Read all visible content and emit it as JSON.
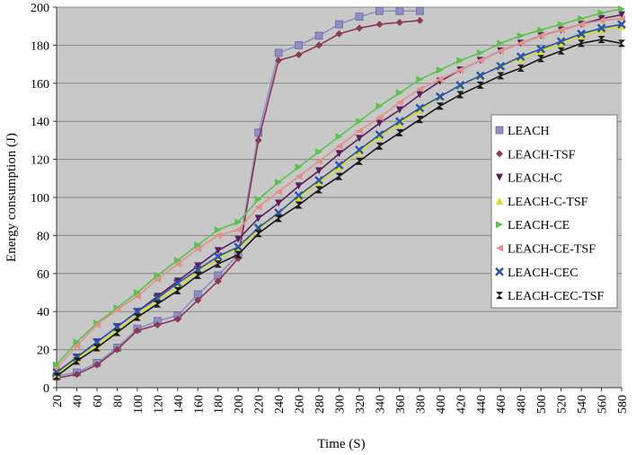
{
  "chart_data": {
    "type": "line",
    "title": "",
    "xlabel": "Time (S)",
    "ylabel": "Energy consumption (J)",
    "ylim": [
      0,
      200
    ],
    "yticks": [
      "0",
      "20",
      "40",
      "60",
      "80",
      "100",
      "120",
      "140",
      "160",
      "180",
      "200"
    ],
    "xticks": [
      "20",
      "40",
      "60",
      "80",
      "100",
      "120",
      "140",
      "160",
      "180",
      "200",
      "220",
      "240",
      "260",
      "280",
      "300",
      "320",
      "340",
      "360",
      "380",
      "400",
      "420",
      "440",
      "460",
      "480",
      "500",
      "520",
      "540",
      "560",
      "580"
    ],
    "grid": "horizontal",
    "legend_position": "right",
    "background": "#c8c8c8",
    "series": [
      {
        "name": "LEACH",
        "color": "#8f8fc6",
        "marker": "square",
        "x": [
          20,
          40,
          60,
          80,
          100,
          120,
          140,
          160,
          180,
          200,
          220,
          240,
          260,
          280,
          300,
          320,
          340,
          360,
          380
        ],
        "y": [
          6,
          8,
          13,
          21,
          31,
          35,
          38,
          49,
          59,
          70,
          134,
          176,
          180,
          185,
          191,
          195,
          198,
          198,
          198
        ]
      },
      {
        "name": "LEACH-TSF",
        "color": "#8a3a52",
        "marker": "diamond",
        "x": [
          20,
          40,
          60,
          80,
          100,
          120,
          140,
          160,
          180,
          200,
          220,
          240,
          260,
          280,
          300,
          320,
          340,
          360,
          380
        ],
        "y": [
          5,
          7,
          12,
          20,
          30,
          33,
          36,
          46,
          56,
          68,
          130,
          172,
          175,
          180,
          186,
          189,
          191,
          192,
          193
        ]
      },
      {
        "name": "LEACH-C",
        "color": "#5a1f5e",
        "marker": "triangle-down",
        "x": [
          20,
          40,
          60,
          80,
          100,
          120,
          140,
          160,
          180,
          200,
          220,
          240,
          260,
          280,
          300,
          320,
          340,
          360,
          380,
          400,
          420,
          440,
          460,
          480,
          500,
          520,
          540,
          560,
          580
        ],
        "y": [
          8,
          16,
          24,
          32,
          40,
          48,
          56,
          64,
          72,
          78,
          89,
          97,
          106,
          114,
          123,
          131,
          139,
          146,
          154,
          161,
          167,
          172,
          177,
          181,
          185,
          188,
          191,
          194,
          196
        ]
      },
      {
        "name": "LEACH-C-TSF",
        "color": "#dddd1a",
        "marker": "triangle-up",
        "x": [
          20,
          40,
          60,
          80,
          100,
          120,
          140,
          160,
          180,
          200,
          220,
          240,
          260,
          280,
          300,
          320,
          340,
          360,
          380,
          400,
          420,
          440,
          460,
          480,
          500,
          520,
          540,
          560,
          580
        ],
        "y": [
          7,
          15,
          22,
          30,
          38,
          46,
          53,
          61,
          68,
          73,
          83,
          92,
          100,
          108,
          116,
          124,
          132,
          139,
          146,
          153,
          159,
          164,
          169,
          173,
          177,
          181,
          185,
          188,
          190
        ]
      },
      {
        "name": "LEACH-CE",
        "color": "#5cc14f",
        "marker": "triangle-right",
        "x": [
          20,
          40,
          60,
          80,
          100,
          120,
          140,
          160,
          180,
          200,
          220,
          240,
          260,
          280,
          300,
          320,
          340,
          360,
          380,
          400,
          420,
          440,
          460,
          480,
          500,
          520,
          540,
          560,
          580
        ],
        "y": [
          12,
          24,
          34,
          42,
          50,
          59,
          67,
          75,
          83,
          87,
          99,
          108,
          116,
          124,
          132,
          140,
          148,
          155,
          162,
          167,
          172,
          176,
          181,
          185,
          188,
          191,
          194,
          197,
          199
        ]
      },
      {
        "name": "LEACH-CE-TSF",
        "color": "#e2908a",
        "marker": "triangle-left",
        "x": [
          20,
          40,
          60,
          80,
          100,
          120,
          140,
          160,
          180,
          200,
          220,
          240,
          260,
          280,
          300,
          320,
          340,
          360,
          380,
          400,
          420,
          440,
          460,
          480,
          500,
          520,
          540,
          560,
          580
        ],
        "y": [
          10,
          22,
          33,
          41,
          48,
          57,
          65,
          73,
          80,
          83,
          95,
          103,
          111,
          119,
          127,
          135,
          142,
          150,
          157,
          162,
          167,
          172,
          177,
          181,
          185,
          188,
          191,
          193,
          194
        ]
      },
      {
        "name": "LEACH-CEC",
        "color": "#2b56a8",
        "marker": "x",
        "x": [
          20,
          40,
          60,
          80,
          100,
          120,
          140,
          160,
          180,
          200,
          220,
          240,
          260,
          280,
          300,
          320,
          340,
          360,
          380,
          400,
          420,
          440,
          460,
          480,
          500,
          520,
          540,
          560,
          580
        ],
        "y": [
          8,
          16,
          24,
          32,
          40,
          47,
          55,
          62,
          69,
          74,
          84,
          92,
          101,
          109,
          117,
          125,
          133,
          140,
          147,
          153,
          159,
          164,
          169,
          174,
          178,
          182,
          186,
          189,
          191
        ]
      },
      {
        "name": "LEACH-CEC-TSF",
        "color": "#1a1a1a",
        "marker": "hourglass",
        "x": [
          20,
          40,
          60,
          80,
          100,
          120,
          140,
          160,
          180,
          200,
          220,
          240,
          260,
          280,
          300,
          320,
          340,
          360,
          380,
          400,
          420,
          440,
          460,
          480,
          500,
          520,
          540,
          560,
          580
        ],
        "y": [
          6,
          14,
          21,
          29,
          37,
          44,
          51,
          59,
          65,
          70,
          81,
          89,
          96,
          104,
          111,
          119,
          127,
          134,
          141,
          148,
          154,
          159,
          164,
          168,
          173,
          177,
          181,
          183,
          181
        ]
      }
    ]
  }
}
